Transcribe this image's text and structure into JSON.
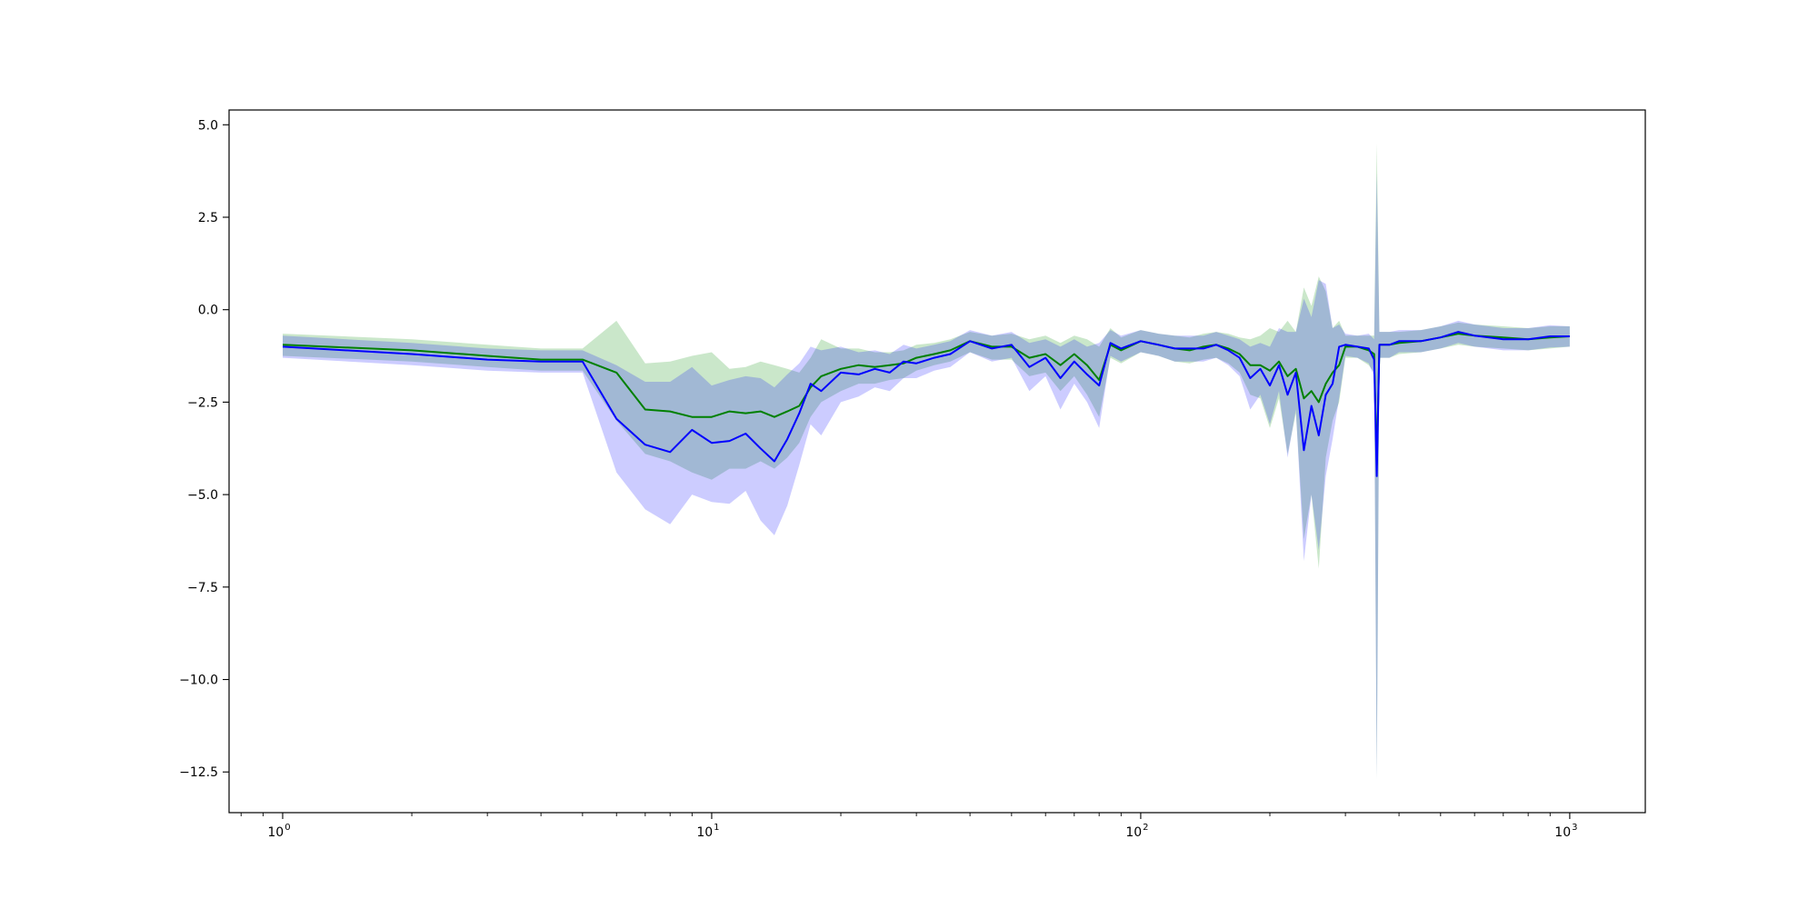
{
  "chart_data": {
    "type": "line",
    "title": "",
    "xlabel": "",
    "ylabel": "",
    "xscale": "log",
    "xlim": [
      0.75,
      1500
    ],
    "ylim": [
      -13.6,
      5.4
    ],
    "grid": false,
    "legend": "none",
    "x_ticks": [
      {
        "value": 1,
        "base": "10",
        "exp": "0"
      },
      {
        "value": 10,
        "base": "10",
        "exp": "1"
      },
      {
        "value": 100,
        "base": "10",
        "exp": "2"
      },
      {
        "value": 1000,
        "base": "10",
        "exp": "3"
      }
    ],
    "y_ticks": [
      {
        "value": 5.0,
        "label": "5.0"
      },
      {
        "value": 2.5,
        "label": "2.5"
      },
      {
        "value": 0.0,
        "label": "0.0"
      },
      {
        "value": -2.5,
        "label": "−2.5"
      },
      {
        "value": -5.0,
        "label": "−5.0"
      },
      {
        "value": -7.5,
        "label": "−7.5"
      },
      {
        "value": -10.0,
        "label": "−10.0"
      },
      {
        "value": -12.5,
        "label": "−12.5"
      }
    ],
    "series": [
      {
        "color": "#008000",
        "band_color": "#2ca02c",
        "x": [
          1,
          2,
          3,
          4,
          5,
          6,
          7,
          8,
          9,
          10,
          11,
          12,
          13,
          14,
          15,
          16,
          17,
          18,
          20,
          22,
          24,
          26,
          28,
          30,
          33,
          36,
          40,
          45,
          50,
          55,
          60,
          65,
          70,
          75,
          80,
          85,
          90,
          100,
          110,
          120,
          130,
          140,
          150,
          160,
          170,
          180,
          190,
          200,
          210,
          220,
          230,
          240,
          250,
          260,
          270,
          280,
          290,
          300,
          320,
          340,
          350,
          355,
          360,
          380,
          400,
          450,
          500,
          550,
          600,
          700,
          800,
          900,
          1000
        ],
        "y": [
          -0.95,
          -1.1,
          -1.25,
          -1.35,
          -1.35,
          -1.7,
          -2.7,
          -2.75,
          -2.9,
          -2.9,
          -2.75,
          -2.8,
          -2.75,
          -2.9,
          -2.75,
          -2.6,
          -2.1,
          -1.8,
          -1.6,
          -1.5,
          -1.55,
          -1.5,
          -1.45,
          -1.3,
          -1.2,
          -1.1,
          -0.85,
          -1.0,
          -1.0,
          -1.3,
          -1.2,
          -1.5,
          -1.2,
          -1.5,
          -1.9,
          -0.95,
          -1.1,
          -0.85,
          -0.95,
          -1.05,
          -1.1,
          -1.0,
          -0.95,
          -1.05,
          -1.2,
          -1.5,
          -1.5,
          -1.65,
          -1.4,
          -1.8,
          -1.6,
          -2.4,
          -2.2,
          -2.5,
          -2.0,
          -1.7,
          -1.5,
          -1.0,
          -1.0,
          -1.1,
          -1.2,
          -4.2,
          -0.95,
          -0.95,
          -0.9,
          -0.85,
          -0.75,
          -0.65,
          -0.7,
          -0.75,
          -0.8,
          -0.75,
          -0.72
        ],
        "lower": [
          -1.25,
          -1.4,
          -1.55,
          -1.65,
          -1.65,
          -3.0,
          -3.9,
          -4.1,
          -4.4,
          -4.6,
          -4.3,
          -4.3,
          -4.1,
          -4.3,
          -4.0,
          -3.6,
          -2.9,
          -2.5,
          -2.2,
          -2.0,
          -2.0,
          -1.9,
          -1.85,
          -1.65,
          -1.5,
          -1.4,
          -1.15,
          -1.35,
          -1.35,
          -1.8,
          -1.7,
          -2.2,
          -1.8,
          -2.3,
          -2.9,
          -1.3,
          -1.45,
          -1.15,
          -1.25,
          -1.4,
          -1.45,
          -1.35,
          -1.3,
          -1.45,
          -1.7,
          -2.3,
          -2.4,
          -3.2,
          -2.4,
          -3.9,
          -2.8,
          -6.2,
          -5.0,
          -7.0,
          -4.0,
          -3.0,
          -2.5,
          -1.3,
          -1.3,
          -1.5,
          -1.7,
          -12.7,
          -1.3,
          -1.3,
          -1.2,
          -1.15,
          -1.05,
          -0.95,
          -1.0,
          -1.05,
          -1.1,
          -1.05,
          -1.0
        ],
        "upper": [
          -0.65,
          -0.8,
          -0.95,
          -1.05,
          -1.05,
          -0.3,
          -1.45,
          -1.4,
          -1.25,
          -1.15,
          -1.6,
          -1.55,
          -1.4,
          -1.5,
          -1.6,
          -1.7,
          -1.3,
          -0.8,
          -1.05,
          -1.05,
          -1.15,
          -1.15,
          -1.1,
          -0.95,
          -0.9,
          -0.8,
          -0.6,
          -0.7,
          -0.65,
          -0.8,
          -0.7,
          -0.9,
          -0.7,
          -0.8,
          -1.0,
          -0.5,
          -0.75,
          -0.55,
          -0.65,
          -0.7,
          -0.75,
          -0.65,
          -0.6,
          -0.65,
          -0.75,
          -0.8,
          -0.7,
          -0.5,
          -0.6,
          -0.3,
          -0.6,
          0.6,
          0.1,
          0.9,
          0.5,
          -0.5,
          -0.3,
          -0.7,
          -0.7,
          -0.7,
          -0.7,
          4.5,
          -0.6,
          -0.6,
          -0.6,
          -0.55,
          -0.45,
          -0.35,
          -0.4,
          -0.45,
          -0.5,
          -0.45,
          -0.45
        ]
      },
      {
        "color": "#0000ff",
        "band_color": "#0000ff",
        "x": [
          1,
          2,
          3,
          4,
          5,
          6,
          7,
          8,
          9,
          10,
          11,
          12,
          13,
          14,
          15,
          16,
          17,
          18,
          20,
          22,
          24,
          26,
          28,
          30,
          33,
          36,
          40,
          45,
          50,
          55,
          60,
          65,
          70,
          75,
          80,
          85,
          90,
          100,
          110,
          120,
          130,
          140,
          150,
          160,
          170,
          180,
          190,
          200,
          210,
          220,
          230,
          240,
          250,
          260,
          270,
          280,
          290,
          300,
          320,
          340,
          350,
          355,
          360,
          380,
          400,
          450,
          500,
          550,
          600,
          700,
          800,
          900,
          1000
        ],
        "y": [
          -1.0,
          -1.2,
          -1.35,
          -1.4,
          -1.4,
          -2.95,
          -3.65,
          -3.85,
          -3.25,
          -3.6,
          -3.55,
          -3.35,
          -3.75,
          -4.1,
          -3.5,
          -2.8,
          -2.0,
          -2.2,
          -1.7,
          -1.75,
          -1.6,
          -1.7,
          -1.4,
          -1.45,
          -1.3,
          -1.2,
          -0.85,
          -1.05,
          -0.95,
          -1.55,
          -1.3,
          -1.85,
          -1.4,
          -1.75,
          -2.05,
          -0.9,
          -1.05,
          -0.85,
          -0.95,
          -1.05,
          -1.05,
          -1.05,
          -0.95,
          -1.1,
          -1.3,
          -1.85,
          -1.6,
          -2.05,
          -1.5,
          -2.3,
          -1.7,
          -3.8,
          -2.6,
          -3.4,
          -2.3,
          -2.0,
          -1.0,
          -0.95,
          -1.0,
          -1.05,
          -1.35,
          -4.5,
          -0.95,
          -0.95,
          -0.85,
          -0.85,
          -0.75,
          -0.6,
          -0.7,
          -0.8,
          -0.8,
          -0.72,
          -0.72
        ],
        "lower": [
          -1.3,
          -1.5,
          -1.65,
          -1.7,
          -1.7,
          -4.4,
          -5.4,
          -5.8,
          -5.0,
          -5.2,
          -5.25,
          -4.9,
          -5.7,
          -6.1,
          -5.3,
          -4.2,
          -3.1,
          -3.4,
          -2.5,
          -2.35,
          -2.1,
          -2.2,
          -1.85,
          -1.85,
          -1.65,
          -1.55,
          -1.15,
          -1.4,
          -1.3,
          -2.2,
          -1.8,
          -2.7,
          -2.0,
          -2.5,
          -3.2,
          -1.25,
          -1.4,
          -1.15,
          -1.25,
          -1.4,
          -1.4,
          -1.4,
          -1.3,
          -1.5,
          -1.8,
          -2.7,
          -2.3,
          -3.1,
          -2.2,
          -4.0,
          -2.7,
          -6.8,
          -5.0,
          -6.5,
          -4.5,
          -3.5,
          -2.4,
          -1.25,
          -1.3,
          -1.45,
          -1.8,
          -12.7,
          -1.3,
          -1.3,
          -1.15,
          -1.15,
          -1.05,
          -0.9,
          -1.0,
          -1.1,
          -1.1,
          -1.02,
          -1.0
        ],
        "upper": [
          -0.7,
          -0.9,
          -1.05,
          -1.1,
          -1.1,
          -1.5,
          -1.95,
          -1.95,
          -1.55,
          -2.05,
          -1.9,
          -1.8,
          -1.85,
          -2.1,
          -1.75,
          -1.45,
          -1.0,
          -1.1,
          -1.0,
          -1.15,
          -1.1,
          -1.2,
          -0.95,
          -1.05,
          -0.95,
          -0.85,
          -0.55,
          -0.7,
          -0.6,
          -0.9,
          -0.8,
          -1.0,
          -0.8,
          -1.0,
          -0.9,
          -0.55,
          -0.7,
          -0.55,
          -0.65,
          -0.7,
          -0.7,
          -0.7,
          -0.6,
          -0.7,
          -0.8,
          -1.0,
          -0.9,
          -1.0,
          -0.5,
          -0.6,
          -0.6,
          0.3,
          -0.2,
          0.8,
          0.7,
          -0.5,
          -0.4,
          -0.65,
          -0.7,
          -0.65,
          -0.8,
          3.7,
          -0.6,
          -0.6,
          -0.55,
          -0.55,
          -0.45,
          -0.3,
          -0.4,
          -0.5,
          -0.5,
          -0.42,
          -0.45
        ]
      }
    ]
  }
}
